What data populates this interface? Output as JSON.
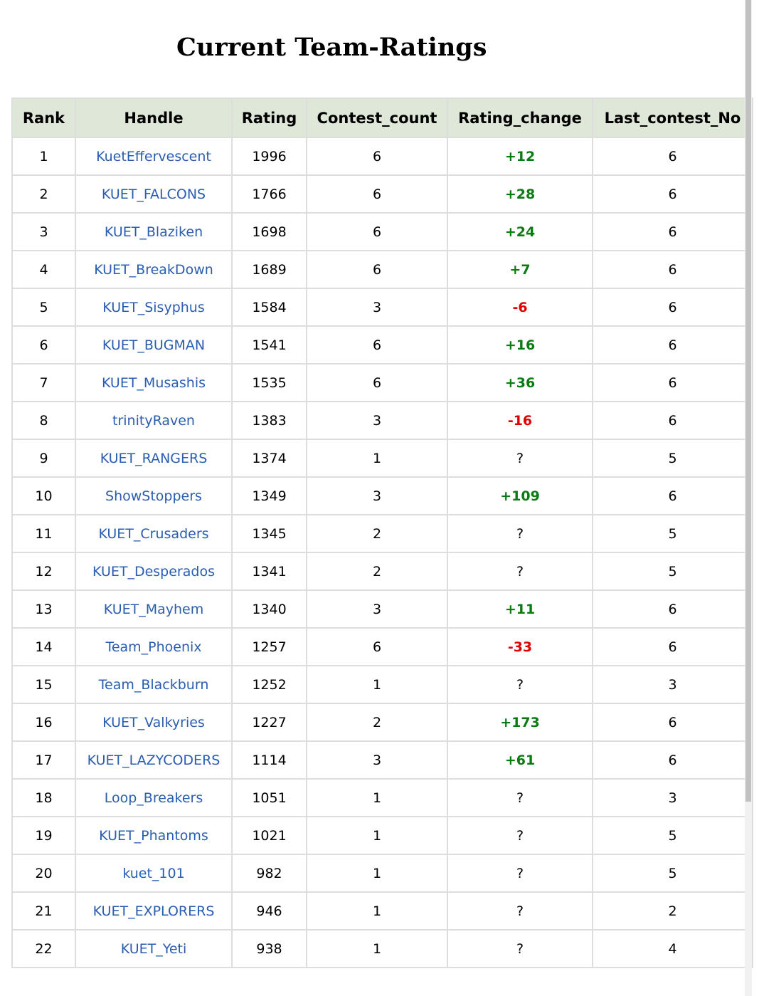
{
  "page": {
    "title": "Current Team-Ratings"
  },
  "colors": {
    "header_bg": "#dfe7d8",
    "link": "#2a5db0",
    "positive": "#0a7a12",
    "negative": "#e00000",
    "border": "#dddddd"
  },
  "table": {
    "headers": [
      "Rank",
      "Handle",
      "Rating",
      "Contest_count",
      "Rating_change",
      "Last_contest_No"
    ],
    "rows": [
      {
        "rank": "1",
        "handle": "KuetEffervescent",
        "rating": "1996",
        "contest_count": "6",
        "rating_change": "+12",
        "last_contest_no": "6"
      },
      {
        "rank": "2",
        "handle": "KUET_FALCONS",
        "rating": "1766",
        "contest_count": "6",
        "rating_change": "+28",
        "last_contest_no": "6"
      },
      {
        "rank": "3",
        "handle": "KUET_Blaziken",
        "rating": "1698",
        "contest_count": "6",
        "rating_change": "+24",
        "last_contest_no": "6"
      },
      {
        "rank": "4",
        "handle": "KUET_BreakDown",
        "rating": "1689",
        "contest_count": "6",
        "rating_change": "+7",
        "last_contest_no": "6"
      },
      {
        "rank": "5",
        "handle": "KUET_Sisyphus",
        "rating": "1584",
        "contest_count": "3",
        "rating_change": "-6",
        "last_contest_no": "6"
      },
      {
        "rank": "6",
        "handle": "KUET_BUGMAN",
        "rating": "1541",
        "contest_count": "6",
        "rating_change": "+16",
        "last_contest_no": "6"
      },
      {
        "rank": "7",
        "handle": "KUET_Musashis",
        "rating": "1535",
        "contest_count": "6",
        "rating_change": "+36",
        "last_contest_no": "6"
      },
      {
        "rank": "8",
        "handle": "trinityRaven",
        "rating": "1383",
        "contest_count": "3",
        "rating_change": "-16",
        "last_contest_no": "6"
      },
      {
        "rank": "9",
        "handle": "KUET_RANGERS",
        "rating": "1374",
        "contest_count": "1",
        "rating_change": "?",
        "last_contest_no": "5"
      },
      {
        "rank": "10",
        "handle": "ShowStoppers",
        "rating": "1349",
        "contest_count": "3",
        "rating_change": "+109",
        "last_contest_no": "6"
      },
      {
        "rank": "11",
        "handle": "KUET_Crusaders",
        "rating": "1345",
        "contest_count": "2",
        "rating_change": "?",
        "last_contest_no": "5"
      },
      {
        "rank": "12",
        "handle": "KUET_Desperados",
        "rating": "1341",
        "contest_count": "2",
        "rating_change": "?",
        "last_contest_no": "5"
      },
      {
        "rank": "13",
        "handle": "KUET_Mayhem",
        "rating": "1340",
        "contest_count": "3",
        "rating_change": "+11",
        "last_contest_no": "6"
      },
      {
        "rank": "14",
        "handle": "Team_Phoenix",
        "rating": "1257",
        "contest_count": "6",
        "rating_change": "-33",
        "last_contest_no": "6"
      },
      {
        "rank": "15",
        "handle": "Team_Blackburn",
        "rating": "1252",
        "contest_count": "1",
        "rating_change": "?",
        "last_contest_no": "3"
      },
      {
        "rank": "16",
        "handle": "KUET_Valkyries",
        "rating": "1227",
        "contest_count": "2",
        "rating_change": "+173",
        "last_contest_no": "6"
      },
      {
        "rank": "17",
        "handle": "KUET_LAZYCODERS",
        "rating": "1114",
        "contest_count": "3",
        "rating_change": "+61",
        "last_contest_no": "6"
      },
      {
        "rank": "18",
        "handle": "Loop_Breakers",
        "rating": "1051",
        "contest_count": "1",
        "rating_change": "?",
        "last_contest_no": "3"
      },
      {
        "rank": "19",
        "handle": "KUET_Phantoms",
        "rating": "1021",
        "contest_count": "1",
        "rating_change": "?",
        "last_contest_no": "5"
      },
      {
        "rank": "20",
        "handle": "kuet_101",
        "rating": "982",
        "contest_count": "1",
        "rating_change": "?",
        "last_contest_no": "5"
      },
      {
        "rank": "21",
        "handle": "KUET_EXPLORERS",
        "rating": "946",
        "contest_count": "1",
        "rating_change": "?",
        "last_contest_no": "2"
      },
      {
        "rank": "22",
        "handle": "KUET_Yeti",
        "rating": "938",
        "contest_count": "1",
        "rating_change": "?",
        "last_contest_no": "4"
      }
    ]
  }
}
